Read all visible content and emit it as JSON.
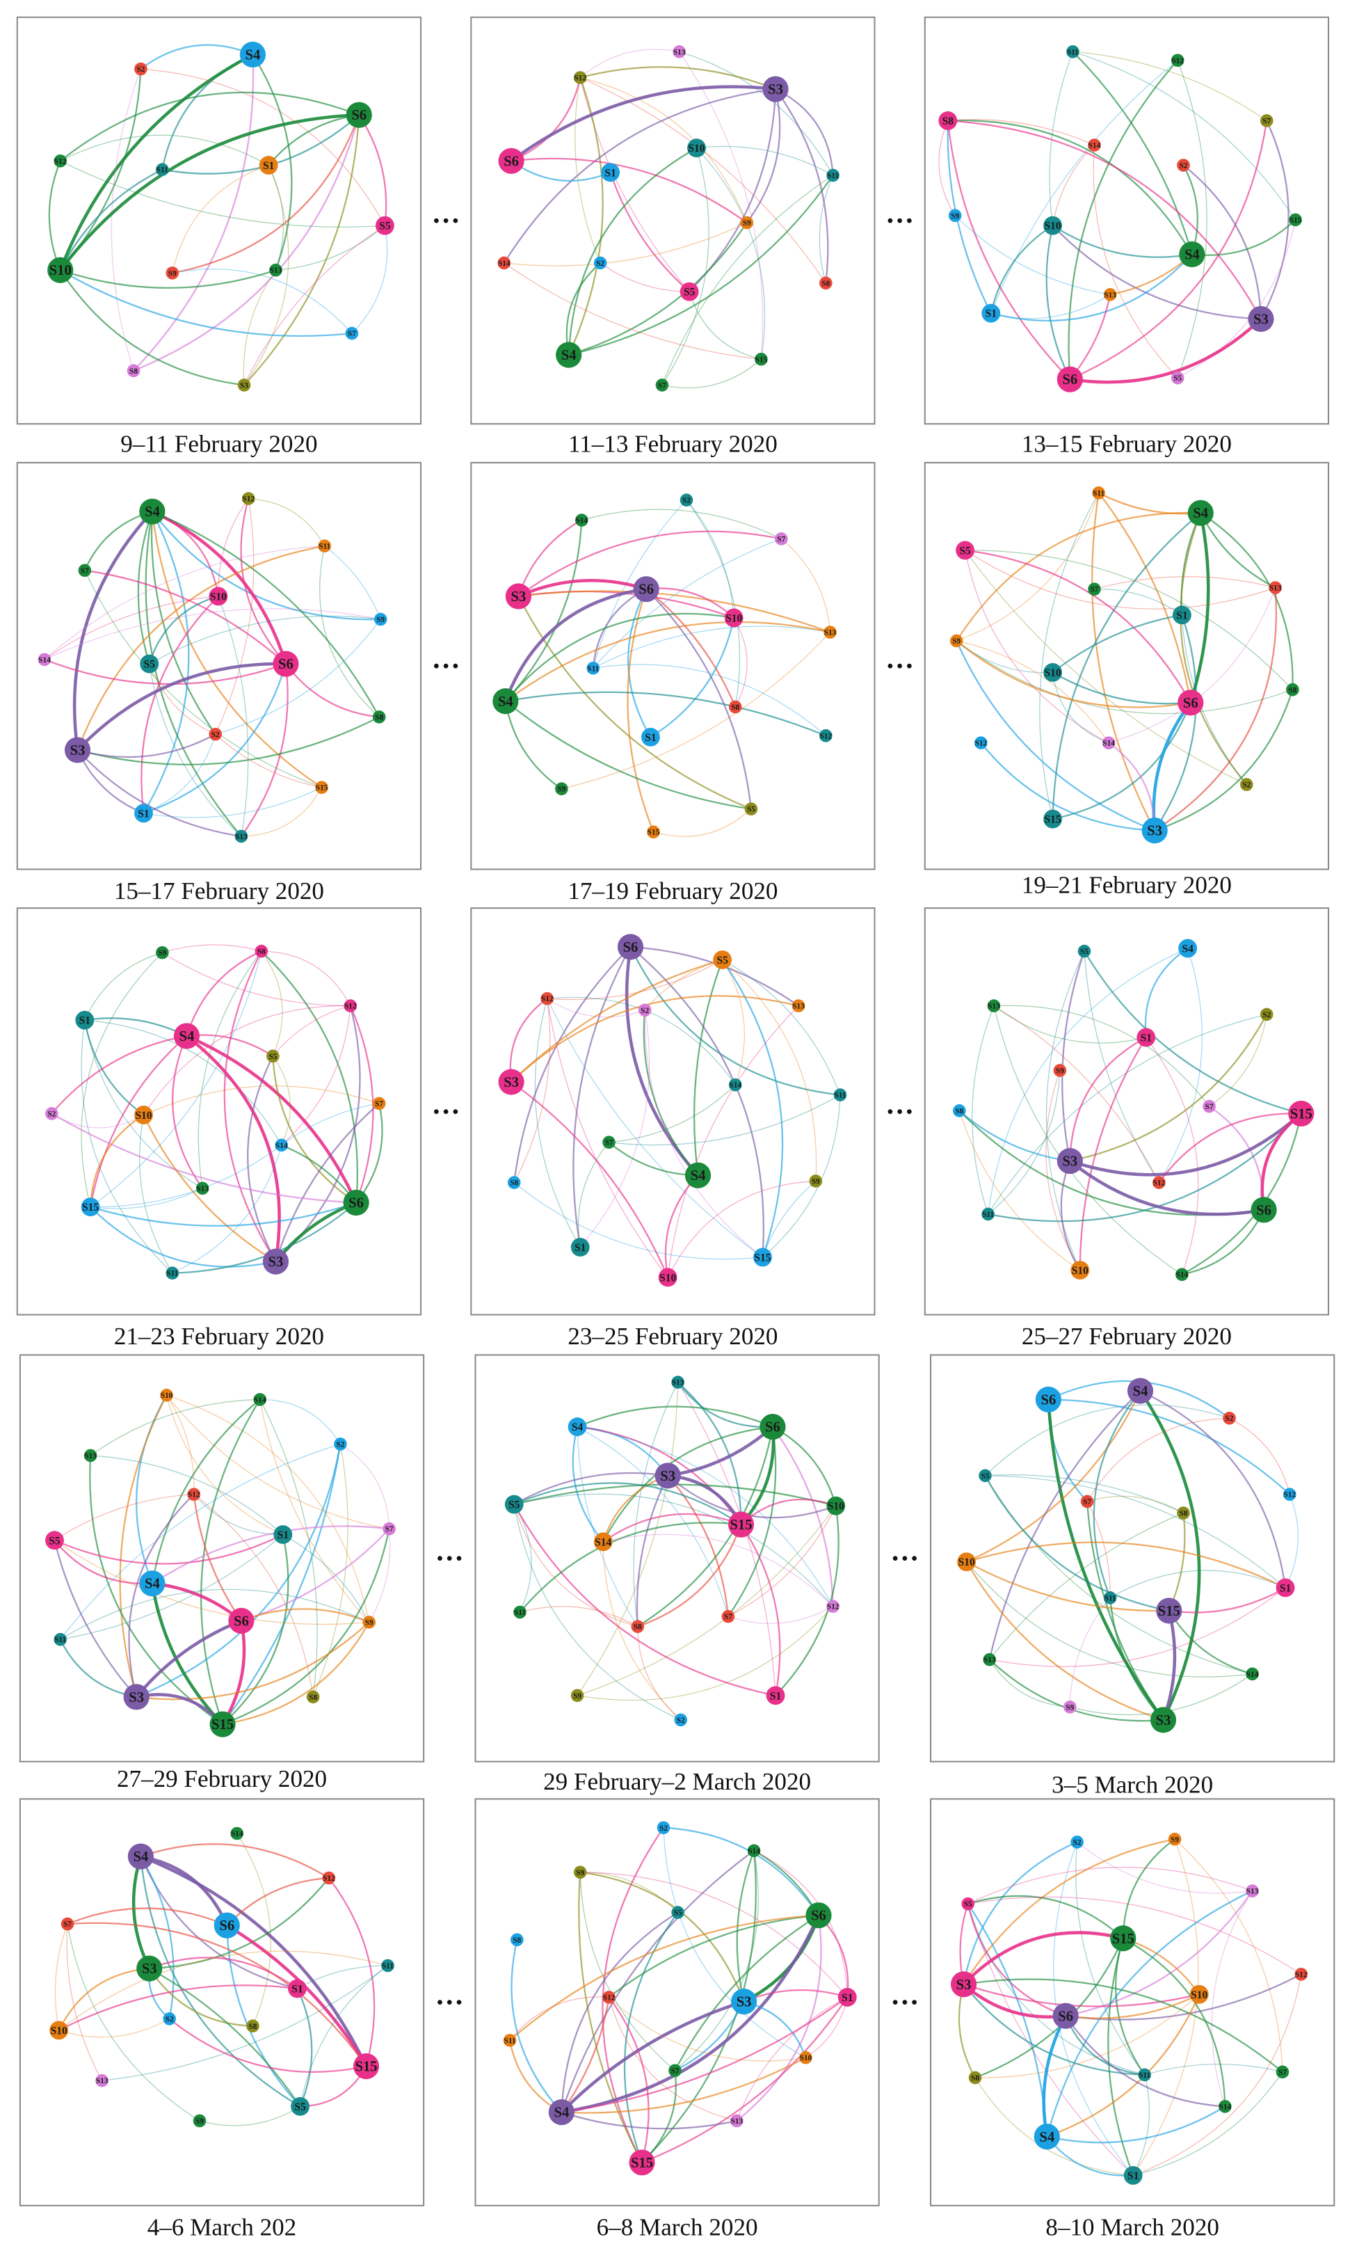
{
  "separator": "···",
  "panels": [
    {
      "caption": "9–11 February 2020",
      "nodes": [
        {
          "label": "S4",
          "color": "#1ba1e2"
        },
        {
          "label": "S2",
          "color": "#e84a3a"
        },
        {
          "label": "S6",
          "color": "#1a8a3a"
        },
        {
          "label": "S12",
          "color": "#1a8a3a"
        },
        {
          "label": "S11",
          "color": "#168a8c"
        },
        {
          "label": "S1",
          "color": "#e67e12"
        },
        {
          "label": "S5",
          "color": "#e8308a"
        },
        {
          "label": "S9",
          "color": "#e84a3a"
        },
        {
          "label": "S10",
          "color": "#1a8a3a"
        },
        {
          "label": "S13",
          "color": "#1a8a3a"
        },
        {
          "label": "S7",
          "color": "#1ba1e2"
        },
        {
          "label": "S8",
          "color": "#d67ad8"
        },
        {
          "label": "S3",
          "color": "#8c8c1c"
        }
      ]
    },
    {
      "caption": "11–13 February 2020",
      "nodes": [
        {
          "label": "S13",
          "color": "#d67ad8"
        },
        {
          "label": "S12",
          "color": "#8c8c1c"
        },
        {
          "label": "S3",
          "color": "#7b5aa6"
        },
        {
          "label": "S6",
          "color": "#e8308a"
        },
        {
          "label": "S1",
          "color": "#1ba1e2"
        },
        {
          "label": "S10",
          "color": "#168a8c"
        },
        {
          "label": "S11",
          "color": "#168a8c"
        },
        {
          "label": "S9",
          "color": "#e67e12"
        },
        {
          "label": "S14",
          "color": "#e84a3a"
        },
        {
          "label": "S2",
          "color": "#1ba1e2"
        },
        {
          "label": "S5",
          "color": "#e8308a"
        },
        {
          "label": "S8",
          "color": "#e84a3a"
        },
        {
          "label": "S4",
          "color": "#1a8a3a"
        },
        {
          "label": "S15",
          "color": "#1a8a3a"
        },
        {
          "label": "S7",
          "color": "#1a8a3a"
        }
      ]
    },
    {
      "caption": "13–15 February 2020",
      "nodes": [
        {
          "label": "S11",
          "color": "#168a8c"
        },
        {
          "label": "S12",
          "color": "#1a8a3a"
        },
        {
          "label": "S8",
          "color": "#e8308a"
        },
        {
          "label": "S7",
          "color": "#8c8c1c"
        },
        {
          "label": "S14",
          "color": "#e84a3a"
        },
        {
          "label": "S2",
          "color": "#e84a3a"
        },
        {
          "label": "S9",
          "color": "#1ba1e2"
        },
        {
          "label": "S10",
          "color": "#168a8c"
        },
        {
          "label": "S15",
          "color": "#1a8a3a"
        },
        {
          "label": "S4",
          "color": "#1a8a3a"
        },
        {
          "label": "S1",
          "color": "#1ba1e2"
        },
        {
          "label": "S13",
          "color": "#e67e12"
        },
        {
          "label": "S3",
          "color": "#7b5aa6"
        },
        {
          "label": "S6",
          "color": "#e8308a"
        },
        {
          "label": "S5",
          "color": "#d67ad8"
        }
      ]
    },
    {
      "caption": "15–17 February 2020",
      "nodes": [
        {
          "label": "S4",
          "color": "#1a8a3a"
        },
        {
          "label": "S12",
          "color": "#8c8c1c"
        },
        {
          "label": "S11",
          "color": "#e67e12"
        },
        {
          "label": "S7",
          "color": "#1a8a3a"
        },
        {
          "label": "S10",
          "color": "#e8308a"
        },
        {
          "label": "S9",
          "color": "#1ba1e2"
        },
        {
          "label": "S14",
          "color": "#d67ad8"
        },
        {
          "label": "S5",
          "color": "#168a8c"
        },
        {
          "label": "S6",
          "color": "#e8308a"
        },
        {
          "label": "S8",
          "color": "#1a8a3a"
        },
        {
          "label": "S2",
          "color": "#e84a3a"
        },
        {
          "label": "S3",
          "color": "#7b5aa6"
        },
        {
          "label": "S15",
          "color": "#e67e12"
        },
        {
          "label": "S1",
          "color": "#1ba1e2"
        },
        {
          "label": "S13",
          "color": "#168a8c"
        }
      ]
    },
    {
      "caption": "17–19 February 2020",
      "nodes": [
        {
          "label": "S2",
          "color": "#168a8c"
        },
        {
          "label": "S14",
          "color": "#1a8a3a"
        },
        {
          "label": "S7",
          "color": "#d67ad8"
        },
        {
          "label": "S3",
          "color": "#e8308a"
        },
        {
          "label": "S6",
          "color": "#7b5aa6"
        },
        {
          "label": "S10",
          "color": "#e8308a"
        },
        {
          "label": "S13",
          "color": "#e67e12"
        },
        {
          "label": "S11",
          "color": "#1ba1e2"
        },
        {
          "label": "S4",
          "color": "#1a8a3a"
        },
        {
          "label": "S8",
          "color": "#e84a3a"
        },
        {
          "label": "S12",
          "color": "#168a8c"
        },
        {
          "label": "S1",
          "color": "#1ba1e2"
        },
        {
          "label": "S9",
          "color": "#1a8a3a"
        },
        {
          "label": "S15",
          "color": "#e67e12"
        },
        {
          "label": "S5",
          "color": "#8c8c1c"
        }
      ]
    },
    {
      "caption": "19–21 February 2020",
      "nodes": [
        {
          "label": "S11",
          "color": "#e67e12"
        },
        {
          "label": "S4",
          "color": "#1a8a3a"
        },
        {
          "label": "S5",
          "color": "#e8308a"
        },
        {
          "label": "S13",
          "color": "#e84a3a"
        },
        {
          "label": "S7",
          "color": "#1a8a3a"
        },
        {
          "label": "S1",
          "color": "#168a8c"
        },
        {
          "label": "S9",
          "color": "#e67e12"
        },
        {
          "label": "S10",
          "color": "#168a8c"
        },
        {
          "label": "S8",
          "color": "#1a8a3a"
        },
        {
          "label": "S6",
          "color": "#e8308a"
        },
        {
          "label": "S12",
          "color": "#1ba1e2"
        },
        {
          "label": "S14",
          "color": "#d67ad8"
        },
        {
          "label": "S2",
          "color": "#8c8c1c"
        },
        {
          "label": "S15",
          "color": "#168a8c"
        },
        {
          "label": "S3",
          "color": "#1ba1e2"
        }
      ]
    },
    {
      "caption": "21–23 February 2020",
      "nodes": [
        {
          "label": "S9",
          "color": "#1a8a3a"
        },
        {
          "label": "S8",
          "color": "#e8308a"
        },
        {
          "label": "S12",
          "color": "#e8308a"
        },
        {
          "label": "S1",
          "color": "#168a8c"
        },
        {
          "label": "S4",
          "color": "#e8308a"
        },
        {
          "label": "S5",
          "color": "#8c8c1c"
        },
        {
          "label": "S7",
          "color": "#e67e12"
        },
        {
          "label": "S2",
          "color": "#d67ad8"
        },
        {
          "label": "S10",
          "color": "#e67e12"
        },
        {
          "label": "S14",
          "color": "#1ba1e2"
        },
        {
          "label": "S13",
          "color": "#1a8a3a"
        },
        {
          "label": "S15",
          "color": "#1ba1e2"
        },
        {
          "label": "S6",
          "color": "#1a8a3a"
        },
        {
          "label": "S3",
          "color": "#7b5aa6"
        },
        {
          "label": "S11",
          "color": "#168a8c"
        }
      ]
    },
    {
      "caption": "23–25 February 2020",
      "nodes": [
        {
          "label": "S6",
          "color": "#7b5aa6"
        },
        {
          "label": "S5",
          "color": "#e67e12"
        },
        {
          "label": "S12",
          "color": "#e84a3a"
        },
        {
          "label": "S13",
          "color": "#e67e12"
        },
        {
          "label": "S2",
          "color": "#d67ad8"
        },
        {
          "label": "S14",
          "color": "#168a8c"
        },
        {
          "label": "S11",
          "color": "#168a8c"
        },
        {
          "label": "S3",
          "color": "#e8308a"
        },
        {
          "label": "S7",
          "color": "#1a8a3a"
        },
        {
          "label": "S4",
          "color": "#1a8a3a"
        },
        {
          "label": "S9",
          "color": "#8c8c1c"
        },
        {
          "label": "S8",
          "color": "#1ba1e2"
        },
        {
          "label": "S1",
          "color": "#168a8c"
        },
        {
          "label": "S15",
          "color": "#1ba1e2"
        },
        {
          "label": "S10",
          "color": "#e8308a"
        }
      ]
    },
    {
      "caption": "25–27 February 2020",
      "nodes": [
        {
          "label": "S5",
          "color": "#168a8c"
        },
        {
          "label": "S4",
          "color": "#1ba1e2"
        },
        {
          "label": "S13",
          "color": "#1a8a3a"
        },
        {
          "label": "S2",
          "color": "#8c8c1c"
        },
        {
          "label": "S1",
          "color": "#e8308a"
        },
        {
          "label": "S9",
          "color": "#e84a3a"
        },
        {
          "label": "S8",
          "color": "#1ba1e2"
        },
        {
          "label": "S7",
          "color": "#d67ad8"
        },
        {
          "label": "S15",
          "color": "#e8308a"
        },
        {
          "label": "S3",
          "color": "#7b5aa6"
        },
        {
          "label": "S12",
          "color": "#e84a3a"
        },
        {
          "label": "S11",
          "color": "#168a8c"
        },
        {
          "label": "S6",
          "color": "#1a8a3a"
        },
        {
          "label": "S10",
          "color": "#e67e12"
        },
        {
          "label": "S14",
          "color": "#1a8a3a"
        }
      ]
    },
    {
      "caption": "27–29 February 2020",
      "nodes": [
        {
          "label": "S10",
          "color": "#e67e12"
        },
        {
          "label": "S14",
          "color": "#1a8a3a"
        },
        {
          "label": "S13",
          "color": "#1a8a3a"
        },
        {
          "label": "S2",
          "color": "#1ba1e2"
        },
        {
          "label": "S12",
          "color": "#e84a3a"
        },
        {
          "label": "S1",
          "color": "#168a8c"
        },
        {
          "label": "S7",
          "color": "#d67ad8"
        },
        {
          "label": "S5",
          "color": "#e8308a"
        },
        {
          "label": "S4",
          "color": "#1ba1e2"
        },
        {
          "label": "S6",
          "color": "#e8308a"
        },
        {
          "label": "S9",
          "color": "#e67e12"
        },
        {
          "label": "S11",
          "color": "#168a8c"
        },
        {
          "label": "S3",
          "color": "#7b5aa6"
        },
        {
          "label": "S8",
          "color": "#8c8c1c"
        },
        {
          "label": "S15",
          "color": "#1a8a3a"
        }
      ]
    },
    {
      "caption": "29 February–2 March 2020",
      "nodes": [
        {
          "label": "S13",
          "color": "#168a8c"
        },
        {
          "label": "S4",
          "color": "#1ba1e2"
        },
        {
          "label": "S6",
          "color": "#1a8a3a"
        },
        {
          "label": "S3",
          "color": "#7b5aa6"
        },
        {
          "label": "S5",
          "color": "#168a8c"
        },
        {
          "label": "S10",
          "color": "#1a8a3a"
        },
        {
          "label": "S15",
          "color": "#e8308a"
        },
        {
          "label": "S14",
          "color": "#e67e12"
        },
        {
          "label": "S11",
          "color": "#1a8a3a"
        },
        {
          "label": "S8",
          "color": "#e84a3a"
        },
        {
          "label": "S7",
          "color": "#e84a3a"
        },
        {
          "label": "S12",
          "color": "#d67ad8"
        },
        {
          "label": "S9",
          "color": "#8c8c1c"
        },
        {
          "label": "S2",
          "color": "#1ba1e2"
        },
        {
          "label": "S1",
          "color": "#e8308a"
        }
      ]
    },
    {
      "caption": "3–5 March 2020",
      "nodes": [
        {
          "label": "S6",
          "color": "#1ba1e2"
        },
        {
          "label": "S4",
          "color": "#7b5aa6"
        },
        {
          "label": "S2",
          "color": "#e84a3a"
        },
        {
          "label": "S5",
          "color": "#168a8c"
        },
        {
          "label": "S7",
          "color": "#e84a3a"
        },
        {
          "label": "S8",
          "color": "#8c8c1c"
        },
        {
          "label": "S12",
          "color": "#1ba1e2"
        },
        {
          "label": "S10",
          "color": "#e67e12"
        },
        {
          "label": "S11",
          "color": "#168a8c"
        },
        {
          "label": "S1",
          "color": "#e8308a"
        },
        {
          "label": "S15",
          "color": "#7b5aa6"
        },
        {
          "label": "S13",
          "color": "#1a8a3a"
        },
        {
          "label": "S14",
          "color": "#1a8a3a"
        },
        {
          "label": "S9",
          "color": "#d67ad8"
        },
        {
          "label": "S3",
          "color": "#1a8a3a"
        }
      ]
    },
    {
      "caption": "4–6 March 202",
      "nodes": [
        {
          "label": "S14",
          "color": "#1a8a3a"
        },
        {
          "label": "S4",
          "color": "#7b5aa6"
        },
        {
          "label": "S12",
          "color": "#e84a3a"
        },
        {
          "label": "S6",
          "color": "#1ba1e2"
        },
        {
          "label": "S7",
          "color": "#e84a3a"
        },
        {
          "label": "S3",
          "color": "#1a8a3a"
        },
        {
          "label": "S11",
          "color": "#168a8c"
        },
        {
          "label": "S1",
          "color": "#e8308a"
        },
        {
          "label": "S10",
          "color": "#e67e12"
        },
        {
          "label": "S2",
          "color": "#1ba1e2"
        },
        {
          "label": "S8",
          "color": "#8c8c1c"
        },
        {
          "label": "S15",
          "color": "#e8308a"
        },
        {
          "label": "S13",
          "color": "#d67ad8"
        },
        {
          "label": "S9",
          "color": "#1a8a3a"
        },
        {
          "label": "S5",
          "color": "#168a8c"
        }
      ]
    },
    {
      "caption": "6–8 March 2020",
      "nodes": [
        {
          "label": "S2",
          "color": "#1ba1e2"
        },
        {
          "label": "S14",
          "color": "#1a8a3a"
        },
        {
          "label": "S9",
          "color": "#8c8c1c"
        },
        {
          "label": "S5",
          "color": "#168a8c"
        },
        {
          "label": "S6",
          "color": "#1a8a3a"
        },
        {
          "label": "S8",
          "color": "#1ba1e2"
        },
        {
          "label": "S3",
          "color": "#1ba1e2"
        },
        {
          "label": "S1",
          "color": "#e8308a"
        },
        {
          "label": "S12",
          "color": "#e84a3a"
        },
        {
          "label": "S11",
          "color": "#e67e12"
        },
        {
          "label": "S7",
          "color": "#1a8a3a"
        },
        {
          "label": "S10",
          "color": "#e67e12"
        },
        {
          "label": "S4",
          "color": "#7b5aa6"
        },
        {
          "label": "S13",
          "color": "#d67ad8"
        },
        {
          "label": "S15",
          "color": "#e8308a"
        }
      ]
    },
    {
      "caption": "8–10 March 2020",
      "nodes": [
        {
          "label": "S2",
          "color": "#1ba1e2"
        },
        {
          "label": "S9",
          "color": "#e67e12"
        },
        {
          "label": "S5",
          "color": "#e8308a"
        },
        {
          "label": "S13",
          "color": "#d67ad8"
        },
        {
          "label": "S15",
          "color": "#1a8a3a"
        },
        {
          "label": "S3",
          "color": "#e8308a"
        },
        {
          "label": "S12",
          "color": "#e84a3a"
        },
        {
          "label": "S10",
          "color": "#e67e12"
        },
        {
          "label": "S6",
          "color": "#7b5aa6"
        },
        {
          "label": "S8",
          "color": "#8c8c1c"
        },
        {
          "label": "S11",
          "color": "#168a8c"
        },
        {
          "label": "S7",
          "color": "#1a8a3a"
        },
        {
          "label": "S4",
          "color": "#1ba1e2"
        },
        {
          "label": "S14",
          "color": "#1a8a3a"
        },
        {
          "label": "S1",
          "color": "#168a8c"
        }
      ]
    }
  ]
}
